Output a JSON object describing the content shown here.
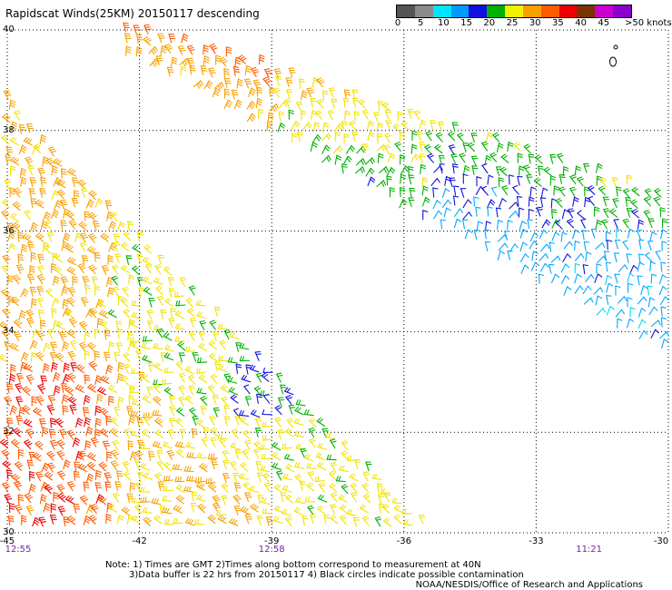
{
  "title": "Rapidscat Winds(25KM) 20150117 descending",
  "map_data": {
    "type": "wind-barb-swath",
    "lon_range": [
      -45,
      -30
    ],
    "lat_range": [
      30,
      40
    ],
    "grid": true,
    "lat_ticks": [
      "40",
      "38",
      "36",
      "34",
      "32",
      "30"
    ],
    "lon_ticks": [
      "-45",
      "-42",
      "-39",
      "-36",
      "-33",
      "-30"
    ],
    "time_labels": [
      {
        "text": "12:55",
        "lon": -45
      },
      {
        "text": "12:58",
        "lon": -39
      },
      {
        "text": "11:21",
        "lon": -31.8
      }
    ],
    "legend": {
      "ticks": [
        "0",
        "5",
        "10",
        "15",
        "20",
        "25",
        "30",
        "35",
        "40",
        "45",
        ">50 knots"
      ],
      "colors": [
        "#555555",
        "#8a8a8a",
        "#00e5ff",
        "#0099ff",
        "#1010e0",
        "#00b000",
        "#f2f200",
        "#f8a000",
        "#ff5a00",
        "#ee0000",
        "#7a3300",
        "#cc00cc",
        "#8a00cc"
      ]
    }
  },
  "notes": {
    "line1": "Note: 1) Times are GMT 2)Times along bottom correspond to measurement at 40N",
    "line2": "3)Data buffer is 22 hrs from 20150117 4) Black circles indicate possible contamination",
    "credit": "NOAA/NESDIS/Office of Research and Applications"
  }
}
